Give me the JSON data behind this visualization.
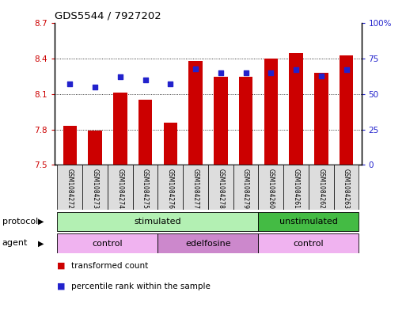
{
  "title": "GDS5544 / 7927202",
  "samples": [
    "GSM1084272",
    "GSM1084273",
    "GSM1084274",
    "GSM1084275",
    "GSM1084276",
    "GSM1084277",
    "GSM1084278",
    "GSM1084279",
    "GSM1084260",
    "GSM1084261",
    "GSM1084262",
    "GSM1084263"
  ],
  "transformed_count": [
    7.83,
    7.79,
    8.11,
    8.05,
    7.86,
    8.38,
    8.25,
    8.25,
    8.4,
    8.45,
    8.28,
    8.43
  ],
  "percentile_rank": [
    57,
    55,
    62,
    60,
    57,
    68,
    65,
    65,
    65,
    67,
    63,
    67
  ],
  "ylim_left": [
    7.5,
    8.7
  ],
  "ylim_right": [
    0,
    100
  ],
  "yticks_left": [
    7.5,
    7.8,
    8.1,
    8.4,
    8.7
  ],
  "yticks_right": [
    0,
    25,
    50,
    75,
    100
  ],
  "ytick_labels_right": [
    "0",
    "25",
    "50",
    "75",
    "100%"
  ],
  "bar_color": "#cc0000",
  "dot_color": "#2222cc",
  "bar_width": 0.55,
  "protocol_labels": [
    {
      "text": "stimulated",
      "start": 0,
      "end": 7,
      "color": "#b3f0b3"
    },
    {
      "text": "unstimulated",
      "start": 8,
      "end": 11,
      "color": "#44bb44"
    }
  ],
  "agent_labels": [
    {
      "text": "control",
      "start": 0,
      "end": 3,
      "color": "#f0b3f0"
    },
    {
      "text": "edelfosine",
      "start": 4,
      "end": 7,
      "color": "#cc88cc"
    },
    {
      "text": "control",
      "start": 8,
      "end": 11,
      "color": "#f0b3f0"
    }
  ],
  "legend_items": [
    {
      "label": "transformed count",
      "color": "#cc0000"
    },
    {
      "label": "percentile rank within the sample",
      "color": "#2222cc"
    }
  ],
  "protocol_row_label": "protocol",
  "agent_row_label": "agent",
  "bg_color": "#ffffff",
  "left_axis_color": "#cc0000",
  "right_axis_color": "#2222cc",
  "sample_box_color": "#dddddd",
  "grid_color": "black"
}
